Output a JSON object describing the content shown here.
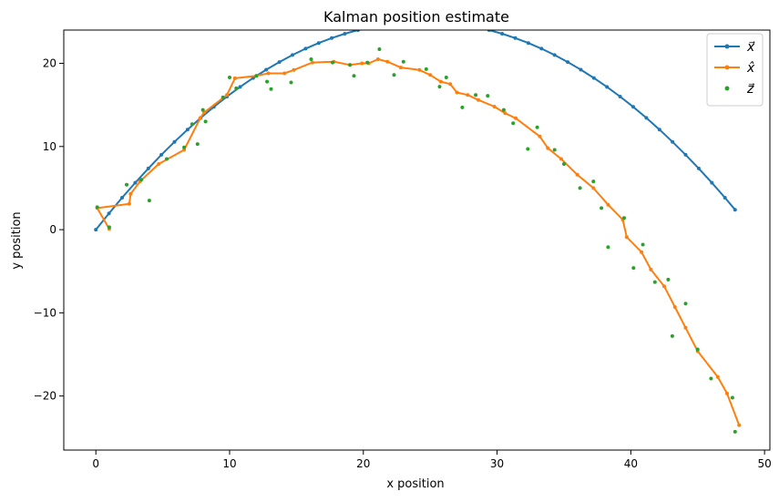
{
  "chart_data": {
    "type": "line",
    "title": "Kalman position estimate",
    "xlabel": "x position",
    "ylabel": "y position",
    "xlim": [
      -2.4,
      50.4
    ],
    "ylim": [
      -26.5,
      24.0
    ],
    "xticks": [
      0,
      10,
      20,
      30,
      40,
      50
    ],
    "yticks": [
      -20,
      -10,
      0,
      10,
      20
    ],
    "legend_position": "top-right",
    "grid": false,
    "series": [
      {
        "name": "x⃗",
        "kind": "line-with-markers",
        "color": "#1f77b4",
        "x": [
          0,
          0.98,
          1.96,
          2.94,
          3.92,
          4.9,
          5.88,
          6.86,
          7.84,
          8.82,
          9.8,
          10.78,
          11.76,
          12.74,
          13.72,
          14.7,
          15.68,
          16.66,
          17.64,
          18.62,
          19.6,
          20.58,
          21.56,
          22.54,
          23.52,
          24.5,
          25.48,
          26.46,
          27.44,
          28.42,
          29.4,
          30.38,
          31.36,
          32.34,
          33.32,
          34.3,
          35.28,
          36.26,
          37.24,
          38.22,
          39.2,
          40.18,
          41.16,
          42.14,
          43.12,
          44.1,
          45.08,
          46.06,
          47.04,
          47.8
        ],
        "y": [
          0,
          1.96,
          3.84,
          5.64,
          7.36,
          9.0,
          10.56,
          12.04,
          13.44,
          14.76,
          16.0,
          17.16,
          18.24,
          19.24,
          20.16,
          21.0,
          21.76,
          22.44,
          23.04,
          23.56,
          24.0,
          24.36,
          24.64,
          24.84,
          24.96,
          25.0,
          24.96,
          24.84,
          24.64,
          24.36,
          24.0,
          23.56,
          23.04,
          22.44,
          21.76,
          21.0,
          20.16,
          19.24,
          18.24,
          17.16,
          16.0,
          14.76,
          13.44,
          12.04,
          10.56,
          9.0,
          7.36,
          5.64,
          3.84,
          2.4
        ]
      },
      {
        "name": "x̂",
        "kind": "line-with-markers",
        "color": "#ff7f0e",
        "x": [
          1.0,
          0.1,
          2.5,
          2.6,
          3.3,
          4.7,
          6.6,
          7.8,
          8.1,
          9.8,
          10.4,
          12.0,
          12.9,
          14.1,
          14.8,
          16.2,
          17.8,
          19.0,
          19.9,
          20.4,
          21.1,
          21.8,
          22.8,
          24.2,
          25.0,
          25.8,
          26.5,
          27.0,
          27.8,
          28.6,
          29.8,
          30.6,
          31.4,
          33.2,
          33.8,
          34.8,
          36.0,
          37.2,
          38.3,
          39.4,
          39.7,
          40.8,
          41.5,
          42.5,
          43.3,
          44.1,
          45.0,
          46.5,
          47.2,
          48.1
        ],
        "y": [
          0.1,
          2.6,
          3.1,
          4.3,
          5.8,
          7.9,
          9.6,
          13.4,
          14.1,
          16.2,
          18.2,
          18.5,
          18.8,
          18.8,
          19.2,
          20.1,
          20.2,
          19.8,
          20.0,
          20.0,
          20.5,
          20.2,
          19.5,
          19.2,
          18.6,
          17.8,
          17.5,
          16.5,
          16.2,
          15.6,
          14.8,
          14.0,
          13.4,
          11.2,
          9.8,
          8.5,
          6.6,
          5.0,
          3.0,
          1.2,
          -0.9,
          -2.7,
          -4.8,
          -6.8,
          -9.3,
          -11.8,
          -14.6,
          -17.7,
          -19.7,
          -23.5
        ]
      },
      {
        "name": "z⃗",
        "kind": "scatter",
        "color": "#2ca02c",
        "x": [
          0.1,
          1.0,
          2.3,
          3.4,
          4.0,
          5.3,
          6.6,
          7.2,
          7.6,
          8.0,
          8.2,
          9.5,
          10.0,
          10.5,
          12.0,
          12.8,
          13.1,
          14.6,
          16.1,
          17.7,
          19.0,
          19.3,
          20.3,
          21.2,
          22.3,
          23.0,
          24.7,
          25.7,
          26.2,
          27.4,
          28.4,
          29.3,
          30.5,
          31.2,
          32.3,
          33.0,
          34.3,
          35.0,
          36.2,
          37.2,
          37.8,
          38.3,
          39.5,
          40.2,
          40.9,
          41.8,
          42.8,
          43.1,
          44.1,
          45.0,
          46.0,
          47.6,
          47.8
        ],
        "y": [
          2.7,
          0.3,
          5.4,
          6.0,
          3.5,
          8.5,
          9.9,
          12.7,
          10.3,
          14.4,
          13.0,
          15.9,
          18.3,
          17.0,
          18.5,
          17.8,
          16.9,
          17.7,
          20.5,
          20.1,
          19.8,
          18.5,
          20.1,
          21.7,
          18.6,
          20.2,
          19.3,
          17.2,
          18.3,
          14.7,
          16.2,
          16.1,
          14.4,
          12.8,
          9.7,
          12.3,
          9.6,
          7.9,
          5.0,
          5.8,
          2.6,
          -2.1,
          1.4,
          -4.6,
          -1.8,
          -6.3,
          -6.0,
          -12.8,
          -8.9,
          -14.4,
          -17.9,
          -20.2,
          -24.3
        ]
      }
    ]
  }
}
